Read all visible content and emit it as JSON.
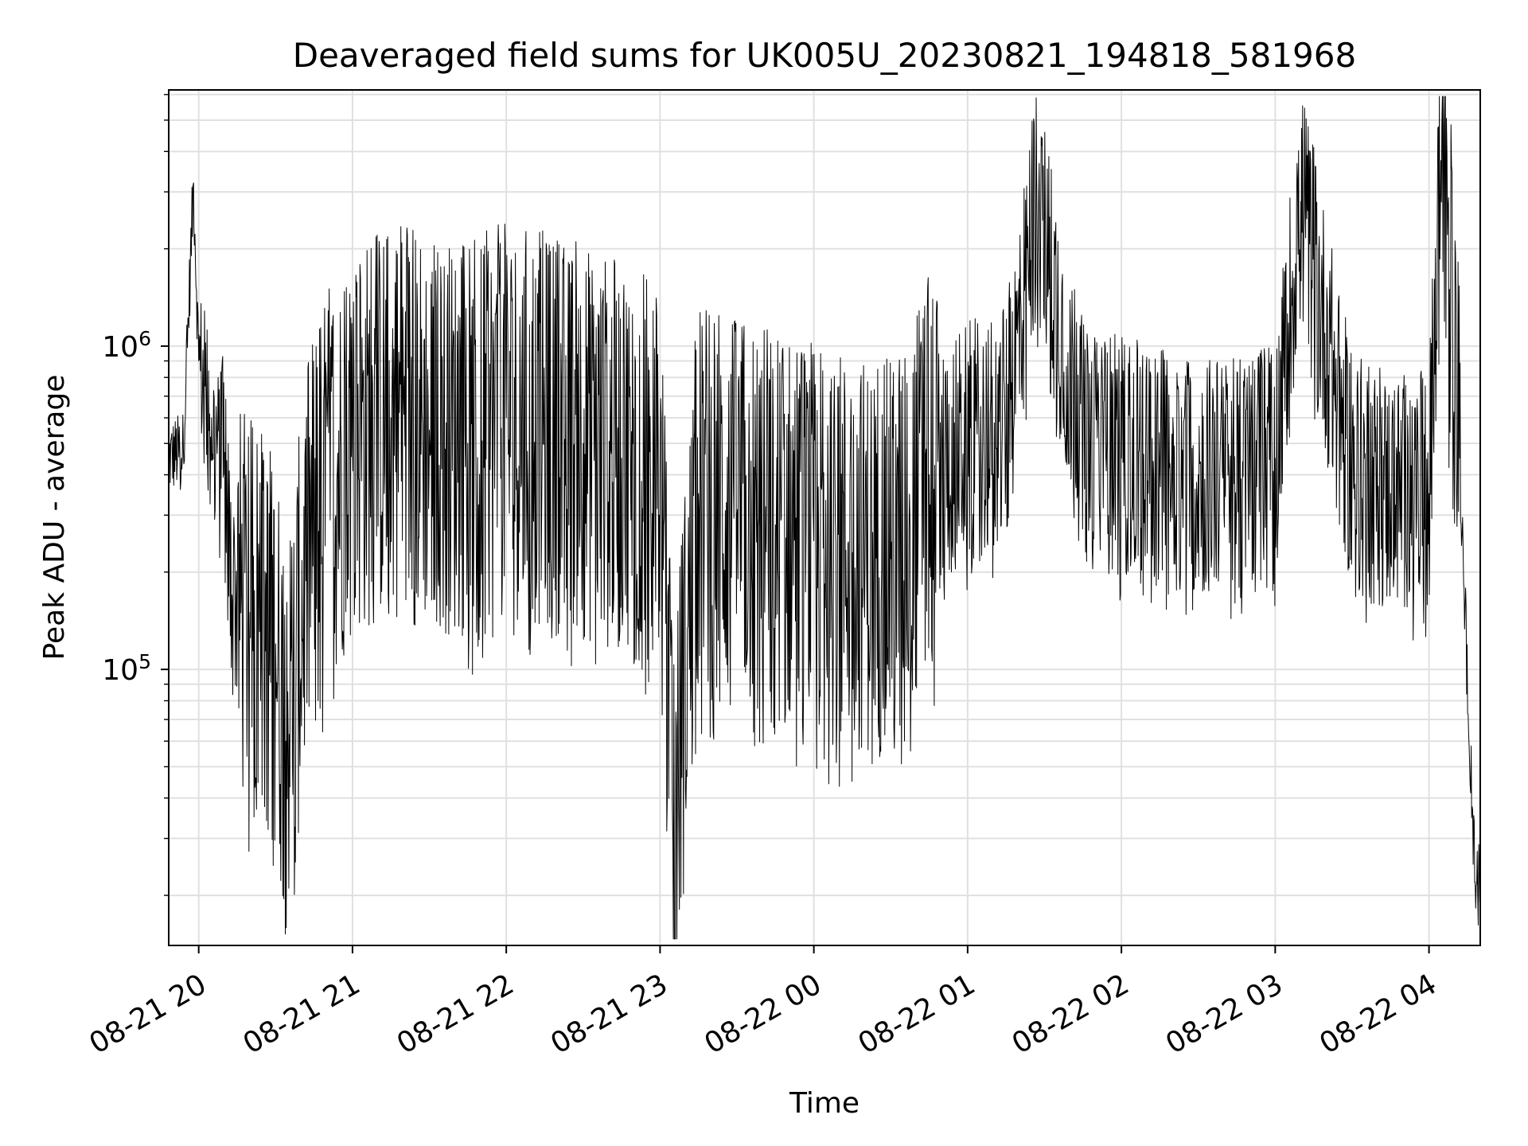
{
  "chart_data": {
    "type": "line",
    "title": "Deaveraged field sums for UK005U_20230821_194818_581968",
    "xlabel": "Time",
    "ylabel": "Peak ADU - average",
    "y_scale": "log",
    "ylim": [
      14000,
      6200000
    ],
    "xlim": [
      "2023-08-21 19:48:18",
      "2023-08-22 04:20:00"
    ],
    "y_tick_labels": [
      "10^5",
      "10^6"
    ],
    "x_ticks": [
      {
        "label": "08-21 20",
        "time": "2023-08-21 20:00"
      },
      {
        "label": "08-21 21",
        "time": "2023-08-21 21:00"
      },
      {
        "label": "08-21 22",
        "time": "2023-08-21 22:00"
      },
      {
        "label": "08-21 23",
        "time": "2023-08-21 23:00"
      },
      {
        "label": "08-22 00",
        "time": "2023-08-22 00:00"
      },
      {
        "label": "08-22 01",
        "time": "2023-08-22 01:00"
      },
      {
        "label": "08-22 02",
        "time": "2023-08-22 02:00"
      },
      {
        "label": "08-22 03",
        "time": "2023-08-22 03:00"
      },
      {
        "label": "08-22 04",
        "time": "2023-08-22 04:00"
      }
    ],
    "grid": true,
    "series_color": "#000000",
    "series": [
      {
        "x": [
          "2023-08-21 19:48:18",
          "2023-08-21 19:54",
          "2023-08-21 19:58",
          "2023-08-21 20:00",
          "2023-08-21 20:05",
          "2023-08-21 20:10",
          "2023-08-21 20:13",
          "2023-08-21 20:20",
          "2023-08-21 20:30",
          "2023-08-21 20:34",
          "2023-08-21 20:45",
          "2023-08-21 21:00",
          "2023-08-21 21:15",
          "2023-08-21 21:30",
          "2023-08-21 21:45",
          "2023-08-21 22:00",
          "2023-08-21 22:15",
          "2023-08-21 22:30",
          "2023-08-21 22:45",
          "2023-08-21 23:00",
          "2023-08-21 23:05",
          "2023-08-21 23:15",
          "2023-08-21 23:30",
          "2023-08-21 23:45",
          "2023-08-22 00:00",
          "2023-08-22 00:15",
          "2023-08-22 00:30",
          "2023-08-22 00:45",
          "2023-08-22 01:00",
          "2023-08-22 01:15",
          "2023-08-22 01:27",
          "2023-08-22 01:45",
          "2023-08-22 02:00",
          "2023-08-22 02:15",
          "2023-08-22 02:30",
          "2023-08-22 02:45",
          "2023-08-22 03:00",
          "2023-08-22 03:10",
          "2023-08-22 03:30",
          "2023-08-22 03:45",
          "2023-08-22 04:00",
          "2023-08-22 04:05",
          "2023-08-22 04:12",
          "2023-08-22 04:18"
        ],
        "y": [
          450000,
          480000,
          3200000,
          900000,
          600000,
          400000,
          170000,
          150000,
          120000,
          60000,
          300000,
          500000,
          600000,
          550000,
          500000,
          600000,
          550000,
          500000,
          450000,
          400000,
          29000,
          350000,
          300000,
          280000,
          250000,
          230000,
          220000,
          400000,
          500000,
          550000,
          2900000,
          500000,
          450000,
          420000,
          400000,
          380000,
          450000,
          2800000,
          400000,
          350000,
          350000,
          4800000,
          450000,
          22000
        ]
      }
    ]
  }
}
